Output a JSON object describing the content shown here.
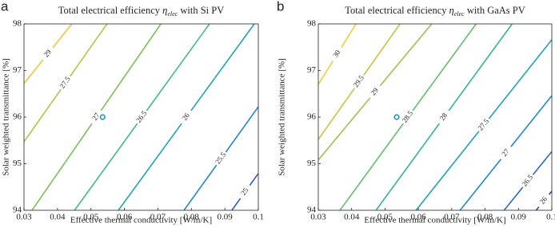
{
  "chart_data": [
    {
      "type": "contour",
      "panel": "a",
      "title": [
        "Total electrical efficiency ",
        "η",
        "elec",
        " with Si PV"
      ],
      "x_label": "Effective thermal conductivity [W/m/K]",
      "y_label": "Solar weighted transmittance [%]",
      "xlim": [
        0.03,
        0.1
      ],
      "ylim": [
        94,
        98
      ],
      "xticks": [
        0.03,
        0.04,
        0.05,
        0.06,
        0.07,
        0.08,
        0.09,
        0.1
      ],
      "yticks": [
        94,
        95,
        96,
        97,
        98
      ],
      "point": {
        "x": 0.0535,
        "y": 96,
        "color": "#1f8fc0"
      },
      "contours": [
        {
          "level": 29,
          "color": "#e8c83a",
          "x": [
            0.03,
            0.0443
          ],
          "y": [
            96.72,
            98
          ]
        },
        {
          "level": 27.5,
          "color": "#b9c244",
          "x": [
            0.03,
            0.0548
          ],
          "y": [
            95.47,
            98
          ]
        },
        {
          "level": 27,
          "color": "#7cbf5a",
          "x": [
            0.0324,
            0.0709
          ],
          "y": [
            94,
            98
          ]
        },
        {
          "level": 26.5,
          "color": "#3fb98a",
          "x": [
            0.0451,
            0.0854
          ],
          "y": [
            94,
            98
          ]
        },
        {
          "level": 26,
          "color": "#1ea6b4",
          "x": [
            0.0582,
            0.0988
          ],
          "y": [
            94,
            98
          ]
        },
        {
          "level": 25.5,
          "color": "#2386cf",
          "x": [
            0.0778,
            0.1
          ],
          "y": [
            94,
            96.22
          ]
        },
        {
          "level": 25,
          "color": "#2a5cc4",
          "x": [
            0.0921,
            0.1
          ],
          "y": [
            94,
            94.79
          ]
        }
      ]
    },
    {
      "type": "contour",
      "panel": "b",
      "title": [
        "Total electrical efficiency ",
        "η",
        "elec",
        " with GaAs PV"
      ],
      "x_label": "Effective thermal conductivity [W/m/K]",
      "y_label": "Solar weighted transmittance [%]",
      "xlim": [
        0.03,
        0.1
      ],
      "ylim": [
        94,
        98
      ],
      "xticks": [
        0.03,
        0.04,
        0.05,
        0.06,
        0.07,
        0.08,
        0.09,
        0.1
      ],
      "yticks": [
        94,
        95,
        96,
        97,
        98
      ],
      "point": {
        "x": 0.0535,
        "y": 96,
        "color": "#1f8fc0"
      },
      "contours": [
        {
          "level": 30,
          "color": "#ecd233",
          "x": [
            0.03,
            0.0413
          ],
          "y": [
            96.7,
            98
          ]
        },
        {
          "level": 29.5,
          "color": "#c9c43e",
          "x": [
            0.03,
            0.0545
          ],
          "y": [
            95.52,
            98
          ]
        },
        {
          "level": 29,
          "color": "#9ec24c",
          "x": [
            0.03,
            0.064
          ],
          "y": [
            95.08,
            98
          ]
        },
        {
          "level": 28.5,
          "color": "#64bd6c",
          "x": [
            0.0365,
            0.0773
          ],
          "y": [
            94,
            98
          ]
        },
        {
          "level": 28,
          "color": "#32b596",
          "x": [
            0.0473,
            0.0881
          ],
          "y": [
            94,
            98
          ]
        },
        {
          "level": 27.5,
          "color": "#1ca3b6",
          "x": [
            0.0593,
            0.1
          ],
          "y": [
            94,
            97.66
          ]
        },
        {
          "level": 27,
          "color": "#2289cf",
          "x": [
            0.0725,
            0.1
          ],
          "y": [
            94,
            96.46
          ]
        },
        {
          "level": 26.5,
          "color": "#2a68cc",
          "x": [
            0.0857,
            0.1
          ],
          "y": [
            94,
            95.26
          ]
        },
        {
          "level": 26,
          "color": "#3244a8",
          "x": [
            0.0953,
            0.1
          ],
          "y": [
            94,
            94.41
          ]
        }
      ]
    }
  ]
}
